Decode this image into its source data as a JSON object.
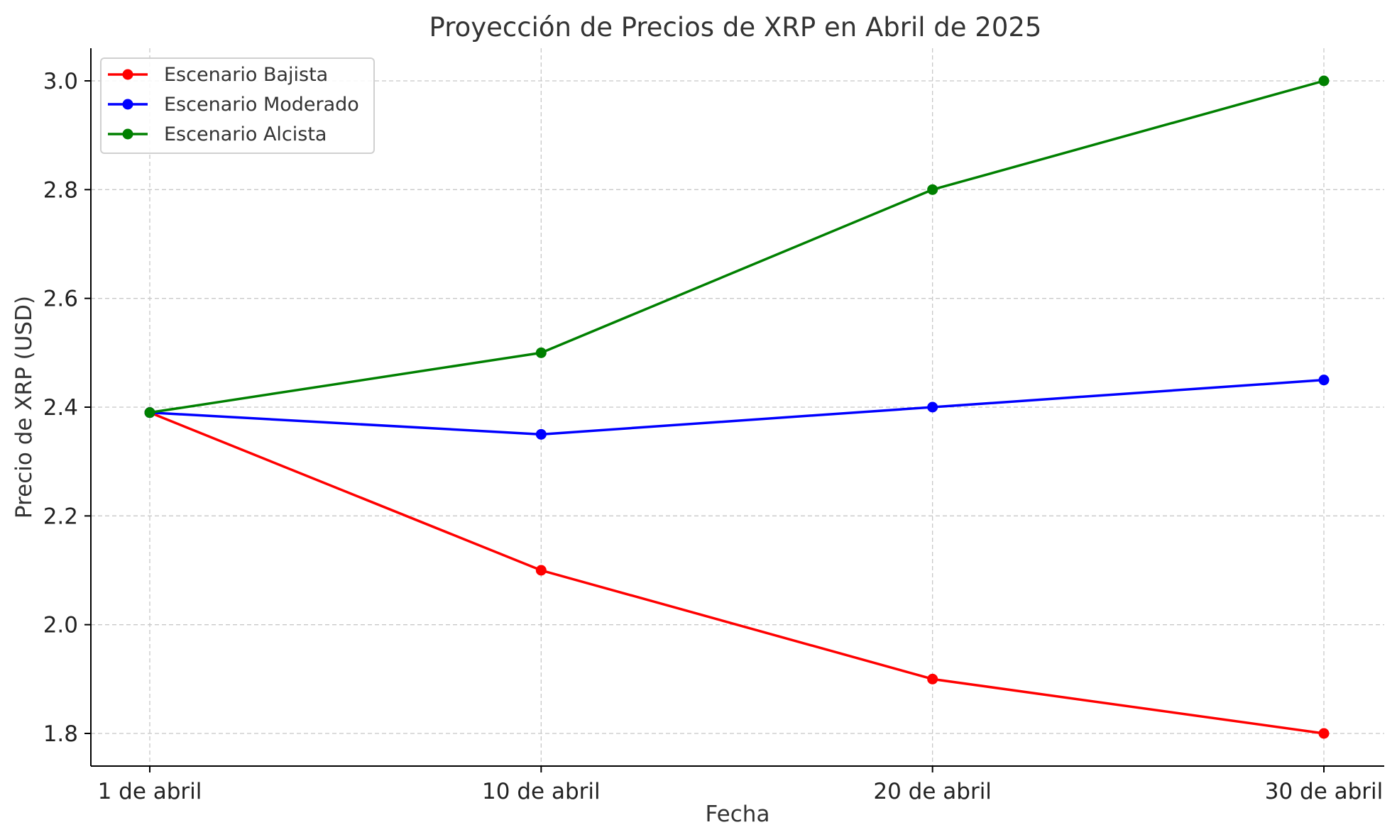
{
  "chart_data": {
    "type": "line",
    "title": "Proyección de Precios de XRP en Abril de 2025",
    "xlabel": "Fecha",
    "ylabel": "Precio de XRP (USD)",
    "categories": [
      "1 de abril",
      "10 de abril",
      "20 de abril",
      "30 de abril"
    ],
    "ylim": [
      1.74,
      3.06
    ],
    "yticks": [
      1.8,
      2.0,
      2.2,
      2.4,
      2.6,
      2.8,
      3.0
    ],
    "ytick_labels": [
      "1.8",
      "2.0",
      "2.2",
      "2.4",
      "2.6",
      "2.8",
      "3.0"
    ],
    "grid": true,
    "legend_position": "top-left",
    "series": [
      {
        "name": "Escenario Bajista",
        "color": "#ff0000",
        "values": [
          2.39,
          2.1,
          1.9,
          1.8
        ]
      },
      {
        "name": "Escenario Moderado",
        "color": "#0000ff",
        "values": [
          2.39,
          2.35,
          2.4,
          2.45
        ]
      },
      {
        "name": "Escenario Alcista",
        "color": "#008000",
        "values": [
          2.39,
          2.5,
          2.8,
          3.0
        ]
      }
    ]
  }
}
